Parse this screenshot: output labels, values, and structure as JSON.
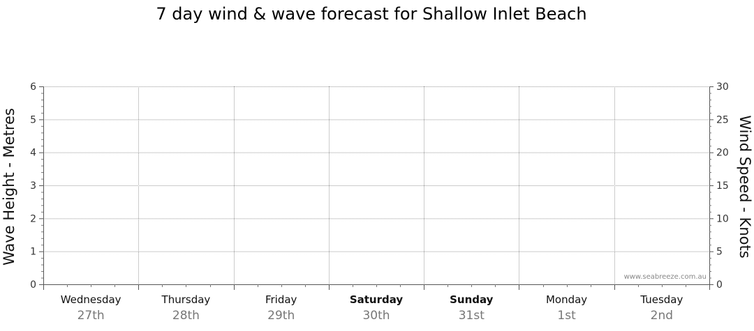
{
  "chart_data": {
    "type": "line",
    "title": "7 day wind & wave forecast for Shallow Inlet Beach",
    "ylabel": "Wave Height - Metres",
    "y2label": "Wind Speed - Knots",
    "ylim": [
      0,
      6
    ],
    "y2lim": [
      0,
      30
    ],
    "yticks": [
      "0",
      "1",
      "2",
      "3",
      "4",
      "5",
      "6"
    ],
    "y2ticks": [
      "0",
      "5",
      "10",
      "15",
      "20",
      "25",
      "30"
    ],
    "days": [
      {
        "name": "Wednesday",
        "date": "27th",
        "bold": false
      },
      {
        "name": "Thursday",
        "date": "28th",
        "bold": false
      },
      {
        "name": "Friday",
        "date": "29th",
        "bold": false
      },
      {
        "name": "Saturday",
        "date": "30th",
        "bold": true
      },
      {
        "name": "Sunday",
        "date": "31st",
        "bold": true
      },
      {
        "name": "Monday",
        "date": "1st",
        "bold": false
      },
      {
        "name": "Tuesday",
        "date": "2nd",
        "bold": false
      }
    ],
    "series": [],
    "grid": true,
    "watermark": "www.seabreeze.com.au"
  }
}
